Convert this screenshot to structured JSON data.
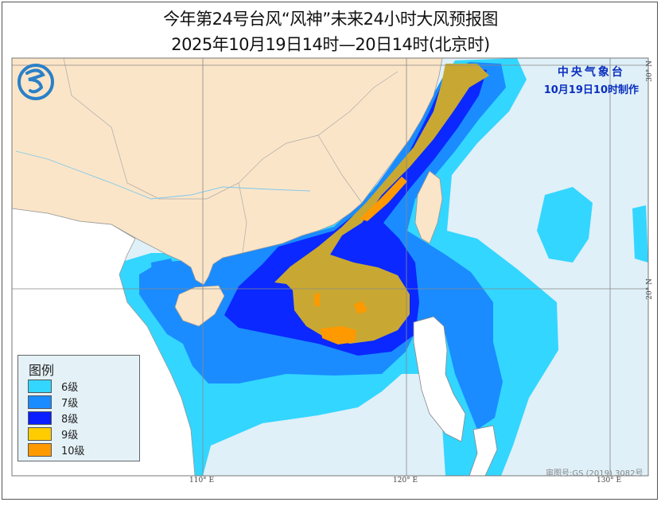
{
  "title": "今年第24号台风“风神”未来24小时大风预报图",
  "subtitle": "2025年10月19日14时—20日14时(北京时)",
  "agency": {
    "name": "中央气象台",
    "issued": "10月19日10时制作"
  },
  "approval_number": "审图号:GS (2019) 3082号",
  "axes": {
    "longitude_labels": [
      "110° E",
      "120° E",
      "130° E"
    ],
    "latitude_labels": [
      "30° N",
      "20° N"
    ]
  },
  "legend": {
    "title": "图例",
    "items": [
      {
        "label": "6级",
        "color": "#33d6ff"
      },
      {
        "label": "7级",
        "color": "#1a8cff"
      },
      {
        "label": "8级",
        "color": "#0a1eff"
      },
      {
        "label": "9级",
        "color": "#ffcc00"
      },
      {
        "label": "10级",
        "color": "#ff9900"
      }
    ]
  },
  "colors": {
    "china_land": "#fbe5c8",
    "other_land": "#ffffff",
    "sea": "#dff0f8",
    "level9_map": "#c8a832"
  }
}
